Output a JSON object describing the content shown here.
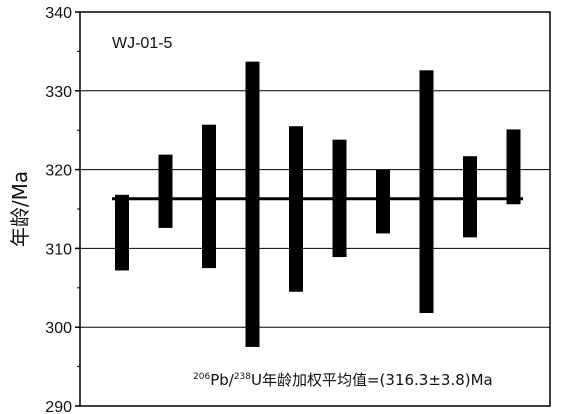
{
  "chart_data": {
    "type": "bar",
    "sample_label": "WJ-01-5",
    "ylabel": "年龄/Ma",
    "ylim": [
      290,
      340
    ],
    "yticks": [
      290,
      300,
      310,
      320,
      330,
      340
    ],
    "grid": true,
    "weighted_mean": 316.3,
    "weighted_mean_error": 3.8,
    "annotation": {
      "sup1": "206",
      "text1": "Pb/",
      "sup2": "238",
      "text2": "U年龄加权平均值=(316.3±3.8)Ma"
    },
    "series": [
      {
        "values": [
          {
            "low": 307.2,
            "high": 316.8
          },
          {
            "low": 312.6,
            "high": 321.9
          },
          {
            "low": 307.5,
            "high": 325.7
          },
          {
            "low": 297.5,
            "high": 333.7
          },
          {
            "low": 304.5,
            "high": 325.5
          },
          {
            "low": 308.9,
            "high": 323.8
          },
          {
            "low": 311.9,
            "high": 320.0
          },
          {
            "low": 301.8,
            "high": 332.6
          },
          {
            "low": 311.4,
            "high": 321.7
          },
          {
            "low": 315.6,
            "high": 325.1
          }
        ]
      }
    ],
    "colors": {
      "bar": "#000000",
      "mean_line": "#000000",
      "grid": "#000000",
      "frame": "#000000",
      "background": "#ffffff"
    }
  }
}
